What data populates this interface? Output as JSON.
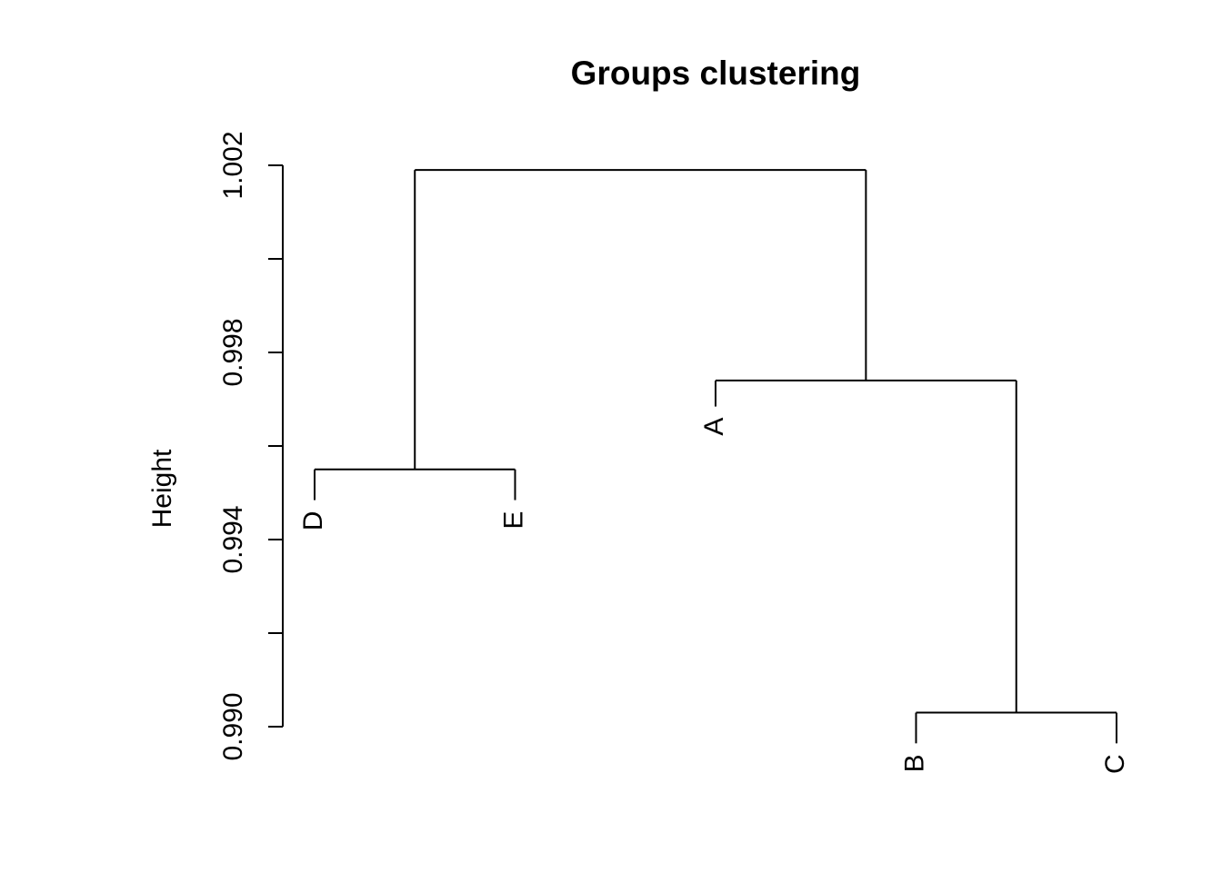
{
  "chart_data": {
    "type": "dendrogram",
    "title": "Groups clustering",
    "xlabel": "",
    "ylabel": "Height",
    "ylim": [
      0.99,
      1.002
    ],
    "y_ticks": [
      0.99,
      0.992,
      0.994,
      0.996,
      0.998,
      1.0,
      1.002
    ],
    "y_tick_labels": [
      "0.990",
      "",
      "0.994",
      "",
      "0.998",
      "",
      "1.002"
    ],
    "leaves": [
      {
        "label": "D",
        "order": 1,
        "label_height": 0.9943
      },
      {
        "label": "E",
        "order": 2,
        "label_height": 0.9943
      },
      {
        "label": "A",
        "order": 3,
        "label_height": 0.9963
      },
      {
        "label": "B",
        "order": 4,
        "label_height": 0.9891
      },
      {
        "label": "C",
        "order": 5,
        "label_height": 0.9891
      }
    ],
    "merges": [
      {
        "left": "B",
        "right": "C",
        "height": 0.9903
      },
      {
        "left": "D",
        "right": "E",
        "height": 0.9955
      },
      {
        "left": "A",
        "right": "BC",
        "height": 0.9974
      },
      {
        "left": "DE",
        "right": "ABC",
        "height": 1.0019
      }
    ],
    "line_color": "#000000"
  }
}
